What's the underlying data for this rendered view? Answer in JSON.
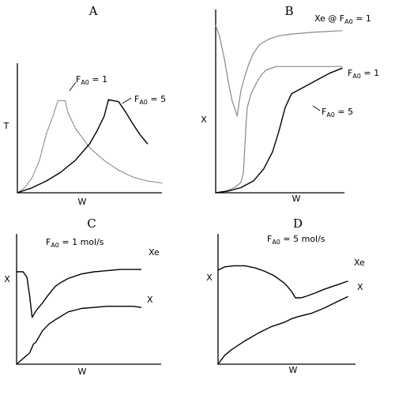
{
  "chart_data": [
    {
      "type": "line",
      "title": "A",
      "xlabel": "W",
      "ylabel": "T",
      "grid": false,
      "xlim": [
        0,
        1
      ],
      "ylim": [
        0,
        1
      ],
      "series": [
        {
          "name": "F_A0 = 1",
          "style": "dotted",
          "color": "#777777",
          "x": [
            0,
            0.05,
            0.1,
            0.15,
            0.2,
            0.25,
            0.28,
            0.33,
            0.35,
            0.4,
            0.5,
            0.6,
            0.7,
            0.8,
            0.9,
            1.0
          ],
          "y": [
            0,
            0.05,
            0.15,
            0.32,
            0.6,
            0.8,
            0.94,
            0.94,
            0.82,
            0.66,
            0.46,
            0.33,
            0.23,
            0.16,
            0.12,
            0.1
          ]
        },
        {
          "name": "F_A0 = 5",
          "style": "solid",
          "color": "#000000",
          "x": [
            0,
            0.1,
            0.2,
            0.3,
            0.4,
            0.5,
            0.55,
            0.6,
            0.63,
            0.7,
            0.75,
            0.8,
            0.85,
            0.9
          ],
          "y": [
            0,
            0.05,
            0.12,
            0.21,
            0.33,
            0.5,
            0.63,
            0.78,
            0.95,
            0.93,
            0.82,
            0.7,
            0.59,
            0.5
          ]
        }
      ],
      "annotations": [
        {
          "base": "F",
          "sub": "A0",
          "rest": " = 1"
        },
        {
          "base": "F",
          "sub": "A0",
          "rest": " = 5"
        }
      ]
    },
    {
      "type": "line",
      "title": "B",
      "xlabel": "W",
      "ylabel": "X",
      "grid": false,
      "xlim": [
        0,
        1
      ],
      "ylim": [
        0,
        1
      ],
      "series": [
        {
          "name": "Xe @ F_A0 = 1",
          "style": "solid",
          "color": "#888888",
          "x": [
            0,
            0.03,
            0.07,
            0.1,
            0.13,
            0.17,
            0.2,
            0.23,
            0.26,
            0.3,
            0.35,
            0.42,
            0.5,
            0.6,
            0.75,
            1.0
          ],
          "y": [
            0.98,
            0.92,
            0.78,
            0.65,
            0.54,
            0.45,
            0.6,
            0.68,
            0.75,
            0.82,
            0.87,
            0.9,
            0.92,
            0.93,
            0.94,
            0.95
          ]
        },
        {
          "name": "F_A0 = 1",
          "style": "solid",
          "color": "#888888",
          "x": [
            0,
            0.08,
            0.15,
            0.2,
            0.22,
            0.24,
            0.25,
            0.28,
            0.32,
            0.36,
            0.4,
            0.48,
            0.58,
            0.7,
            0.85,
            1.0
          ],
          "y": [
            0,
            0.01,
            0.03,
            0.06,
            0.12,
            0.4,
            0.5,
            0.58,
            0.64,
            0.69,
            0.72,
            0.74,
            0.74,
            0.74,
            0.74,
            0.74
          ]
        },
        {
          "name": "F_A0 = 5",
          "style": "solid",
          "color": "#000000",
          "x": [
            0,
            0.1,
            0.2,
            0.3,
            0.38,
            0.45,
            0.5,
            0.55,
            0.6,
            0.65,
            0.7,
            0.8,
            0.9,
            1.0
          ],
          "y": [
            0,
            0.01,
            0.03,
            0.07,
            0.14,
            0.24,
            0.36,
            0.5,
            0.58,
            0.6,
            0.62,
            0.66,
            0.7,
            0.73
          ]
        }
      ],
      "annotations": [
        {
          "base": "Xe @ F",
          "sub": "A0",
          "rest": " = 1"
        },
        {
          "base": "F",
          "sub": "A0",
          "rest": " = 1"
        },
        {
          "base": "F",
          "sub": "A0",
          "rest": " = 5"
        }
      ]
    },
    {
      "type": "line",
      "title": "C",
      "xlabel": "W",
      "ylabel": "X",
      "grid": false,
      "xlim": [
        0,
        1
      ],
      "ylim": [
        0,
        1
      ],
      "subtitle": {
        "base": "F",
        "sub": "A0",
        "rest": " = 1 mol/s"
      },
      "series": [
        {
          "name": "Xe",
          "style": "solid",
          "color": "#000000",
          "x": [
            0,
            0.05,
            0.08,
            0.1,
            0.12,
            0.15,
            0.2,
            0.25,
            0.3,
            0.35,
            0.4,
            0.5,
            0.6,
            0.7,
            0.8,
            0.9,
            0.96
          ],
          "y": [
            0.83,
            0.83,
            0.78,
            0.62,
            0.42,
            0.48,
            0.55,
            0.63,
            0.7,
            0.74,
            0.77,
            0.81,
            0.83,
            0.84,
            0.85,
            0.85,
            0.85
          ]
        },
        {
          "name": "X",
          "style": "solid",
          "color": "#000000",
          "x": [
            0,
            0.05,
            0.1,
            0.13,
            0.15,
            0.2,
            0.25,
            0.3,
            0.4,
            0.5,
            0.6,
            0.7,
            0.8,
            0.9,
            0.96
          ],
          "y": [
            0,
            0.05,
            0.1,
            0.18,
            0.2,
            0.3,
            0.36,
            0.4,
            0.47,
            0.5,
            0.51,
            0.52,
            0.52,
            0.52,
            0.51
          ]
        }
      ],
      "annotations": [
        {
          "base": "Xe",
          "sub": "",
          "rest": ""
        },
        {
          "base": "X",
          "sub": "",
          "rest": ""
        }
      ]
    },
    {
      "type": "line",
      "title": "D",
      "xlabel": "W",
      "ylabel": "X",
      "grid": false,
      "xlim": [
        0,
        1
      ],
      "ylim": [
        0,
        1
      ],
      "subtitle": {
        "base": "F",
        "sub": "A0",
        "rest": " = 5 mol/s"
      },
      "series": [
        {
          "name": "Xe",
          "style": "solid",
          "color": "#000000",
          "x": [
            0,
            0.05,
            0.12,
            0.2,
            0.28,
            0.35,
            0.42,
            0.5,
            0.55,
            0.58,
            0.62,
            0.65,
            0.72,
            0.8,
            0.9,
            0.97
          ],
          "y": [
            0.85,
            0.88,
            0.89,
            0.89,
            0.87,
            0.84,
            0.8,
            0.73,
            0.66,
            0.6,
            0.6,
            0.61,
            0.64,
            0.68,
            0.72,
            0.75
          ]
        },
        {
          "name": "X",
          "style": "solid",
          "color": "#000000",
          "x": [
            0,
            0.05,
            0.1,
            0.2,
            0.3,
            0.4,
            0.5,
            0.55,
            0.6,
            0.7,
            0.8,
            0.9,
            0.97
          ],
          "y": [
            0,
            0.08,
            0.13,
            0.21,
            0.28,
            0.34,
            0.38,
            0.41,
            0.43,
            0.46,
            0.51,
            0.57,
            0.61
          ]
        }
      ],
      "annotations": [
        {
          "base": "Xe",
          "sub": "",
          "rest": ""
        },
        {
          "base": "X",
          "sub": "",
          "rest": ""
        }
      ]
    }
  ]
}
